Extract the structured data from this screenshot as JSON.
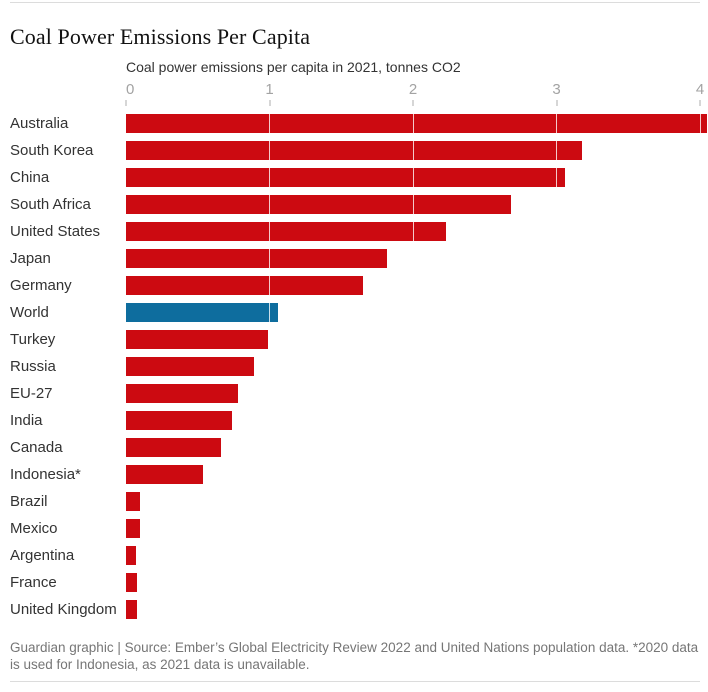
{
  "page": {
    "title": "Coal Power Emissions Per Capita",
    "footer": "Guardian graphic | Source: Ember’s Global Electricity Review 2022 and United Nations population data. *2020 data is used for Indonesia, as 2021 data is unavailable."
  },
  "colors": {
    "bar_red": "#cc0a11",
    "highlight_blue": "#0e6d9e",
    "gridline_white": "#ffffff",
    "tick_label_gray": "#a3a3a3",
    "tick_mark_gray": "#d6d6d6",
    "divider_gray": "#dcdcdc",
    "title_text": "#121212",
    "label_text": "#333333",
    "footer_text": "#767676"
  },
  "chart_data": {
    "type": "bar",
    "orientation": "horizontal",
    "title": "Coal Power Emissions Per Capita",
    "subtitle": "Coal power emissions per capita in 2021, tonnes CO2",
    "xlabel": "tonnes CO2 per capita",
    "ylabel": "",
    "xlim": [
      0,
      4
    ],
    "x_ticks": [
      "0",
      "1",
      "2",
      "3",
      "4"
    ],
    "grid": "vertical gridlines at each tick, rendered white over bars",
    "legend": "none",
    "highlight_index": 7,
    "highlight_category": "World",
    "categories": [
      "Australia",
      "South Korea",
      "China",
      "South Africa",
      "United States",
      "Japan",
      "Germany",
      "World",
      "Turkey",
      "Russia",
      "EU-27",
      "India",
      "Canada",
      "Indonesia*",
      "Brazil",
      "Mexico",
      "Argentina",
      "France",
      "United Kingdom"
    ],
    "values": [
      4.05,
      3.18,
      3.06,
      2.68,
      2.23,
      1.82,
      1.65,
      1.06,
      0.99,
      0.89,
      0.78,
      0.74,
      0.66,
      0.54,
      0.1,
      0.1,
      0.07,
      0.08,
      0.08
    ]
  }
}
